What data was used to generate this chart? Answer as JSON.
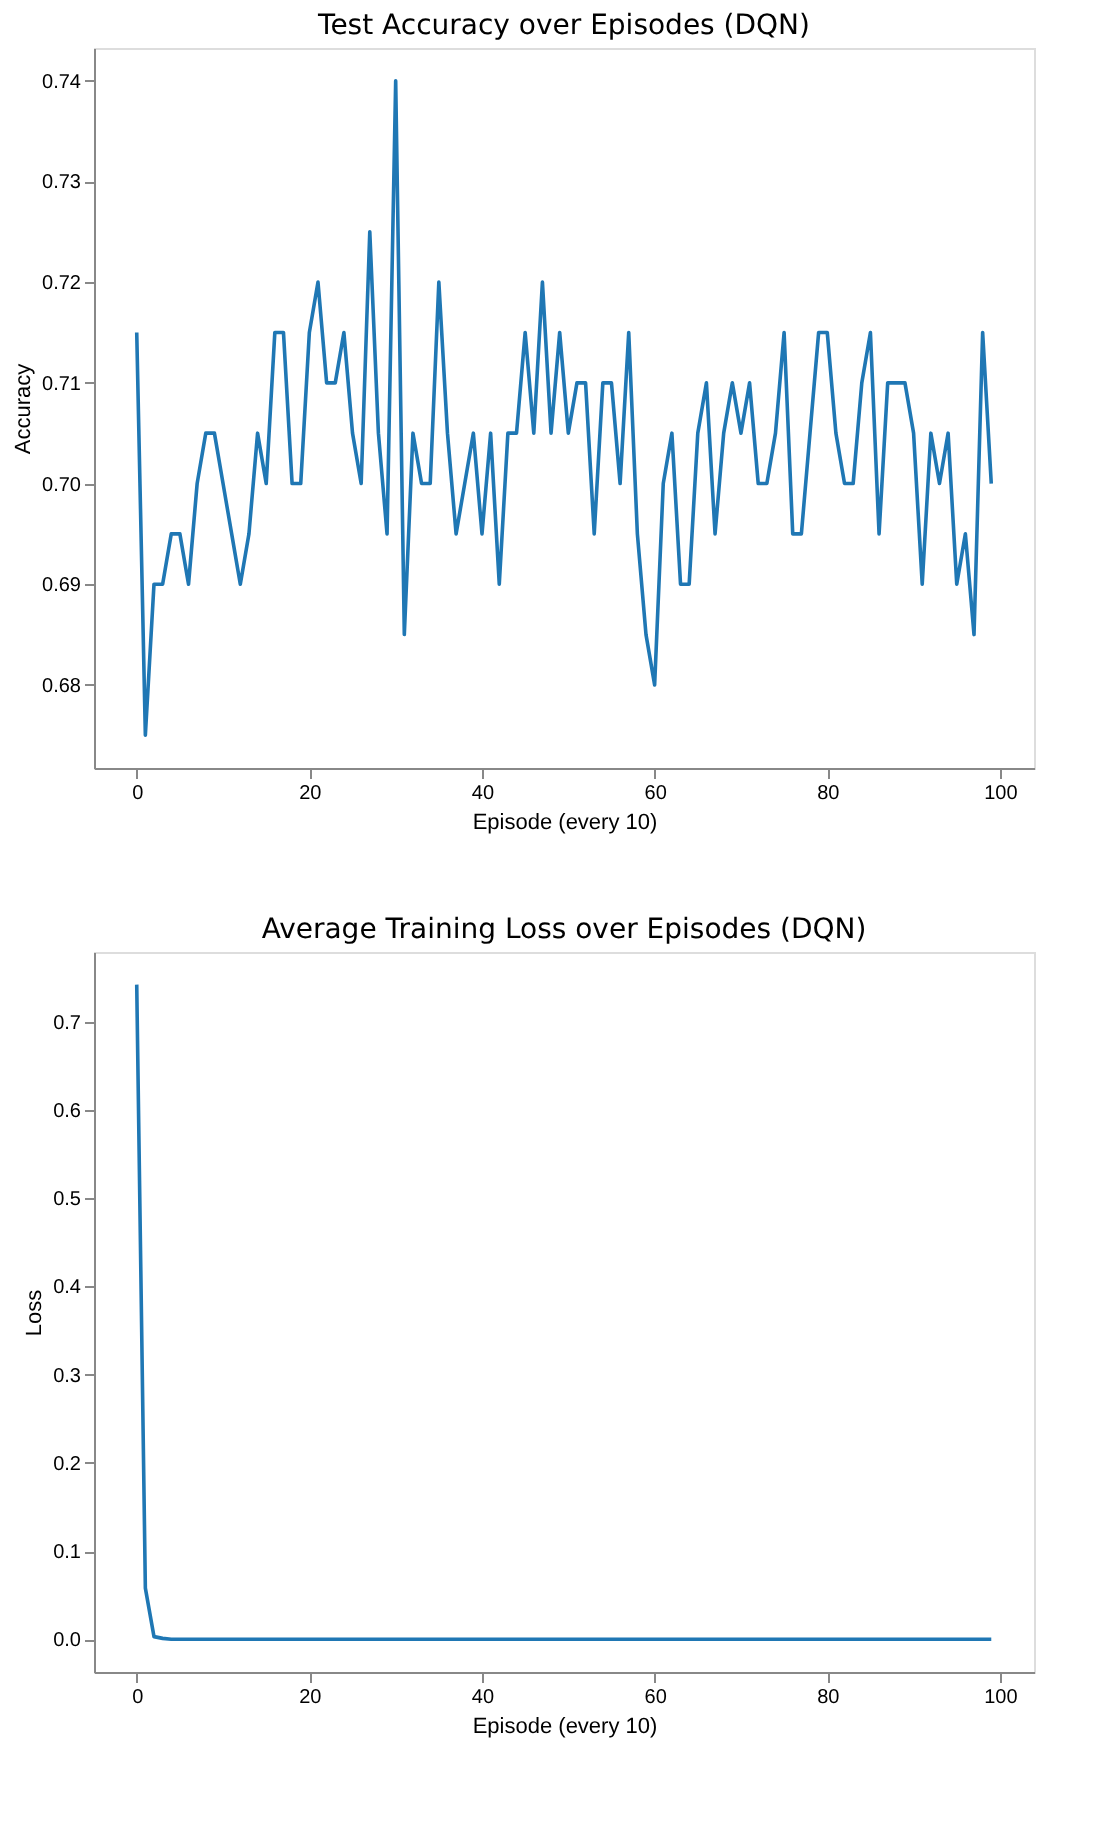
{
  "chart_data": [
    {
      "type": "line",
      "title": "Test Accuracy over Episodes (DQN)",
      "xlabel": "Episode (every 10)",
      "ylabel": "Accuracy",
      "grid": false,
      "line_style": "solid",
      "marker": "none",
      "x": [
        0,
        1,
        2,
        3,
        4,
        5,
        6,
        7,
        8,
        9,
        10,
        11,
        12,
        13,
        14,
        15,
        16,
        17,
        18,
        19,
        20,
        21,
        22,
        23,
        24,
        25,
        26,
        27,
        28,
        29,
        30,
        31,
        32,
        33,
        34,
        35,
        36,
        37,
        38,
        39,
        40,
        41,
        42,
        43,
        44,
        45,
        46,
        47,
        48,
        49,
        50,
        51,
        52,
        53,
        54,
        55,
        56,
        57,
        58,
        59,
        60,
        61,
        62,
        63,
        64,
        65,
        66,
        67,
        68,
        69,
        70,
        71,
        72,
        73,
        74,
        75,
        76,
        77,
        78,
        79,
        80,
        81,
        82,
        83,
        84,
        85,
        86,
        87,
        88,
        89,
        90,
        91,
        92,
        93,
        94,
        95,
        96,
        97,
        98,
        99
      ],
      "series": [
        {
          "color": "#1f77b4",
          "values": [
            0.715,
            0.675,
            0.69,
            0.69,
            0.695,
            0.695,
            0.69,
            0.7,
            0.705,
            0.705,
            0.7,
            0.695,
            0.69,
            0.695,
            0.705,
            0.7,
            0.715,
            0.715,
            0.7,
            0.7,
            0.715,
            0.72,
            0.71,
            0.71,
            0.715,
            0.705,
            0.7,
            0.725,
            0.705,
            0.695,
            0.74,
            0.685,
            0.705,
            0.7,
            0.7,
            0.72,
            0.705,
            0.695,
            0.7,
            0.705,
            0.695,
            0.705,
            0.69,
            0.705,
            0.705,
            0.715,
            0.705,
            0.72,
            0.705,
            0.715,
            0.705,
            0.71,
            0.71,
            0.695,
            0.71,
            0.71,
            0.7,
            0.715,
            0.695,
            0.685,
            0.68,
            0.7,
            0.705,
            0.69,
            0.69,
            0.705,
            0.71,
            0.695,
            0.705,
            0.71,
            0.705,
            0.71,
            0.7,
            0.7,
            0.705,
            0.715,
            0.695,
            0.695,
            0.705,
            0.715,
            0.715,
            0.705,
            0.7,
            0.7,
            0.71,
            0.715,
            0.695,
            0.71,
            0.71,
            0.71,
            0.705,
            0.69,
            0.705,
            0.7,
            0.705,
            0.69,
            0.695,
            0.685,
            0.715,
            0.7
          ]
        }
      ],
      "xlim": [
        -4.95,
        103.95
      ],
      "xticks": [
        0,
        20,
        40,
        60,
        80,
        100
      ],
      "ylim": [
        0.67175,
        0.74325
      ],
      "yticks": [
        0.68,
        0.69,
        {
          "value": 0.7,
          "label": "0.70"
        },
        0.71,
        0.72,
        0.73,
        0.74
      ]
    },
    {
      "type": "line",
      "title": "Average Training Loss over Episodes (DQN)",
      "xlabel": "Episode (every 10)",
      "ylabel": "Loss",
      "grid": false,
      "line_style": "solid",
      "marker": "none",
      "x": [
        0,
        1,
        2,
        3,
        4,
        5,
        6,
        7,
        8,
        9,
        10,
        11,
        12,
        13,
        14,
        15,
        16,
        17,
        18,
        19,
        20,
        21,
        22,
        23,
        24,
        25,
        26,
        27,
        28,
        29,
        30,
        31,
        32,
        33,
        34,
        35,
        36,
        37,
        38,
        39,
        40,
        41,
        42,
        43,
        44,
        45,
        46,
        47,
        48,
        49,
        50,
        51,
        52,
        53,
        54,
        55,
        56,
        57,
        58,
        59,
        60,
        61,
        62,
        63,
        64,
        65,
        66,
        67,
        68,
        69,
        70,
        71,
        72,
        73,
        74,
        75,
        76,
        77,
        78,
        79,
        80,
        81,
        82,
        83,
        84,
        85,
        86,
        87,
        88,
        89,
        90,
        91,
        92,
        93,
        94,
        95,
        96,
        97,
        98,
        99
      ],
      "series": [
        {
          "color": "#1f77b4",
          "values": [
            0.742,
            0.058,
            0.003,
            0.001,
            0,
            0,
            0,
            0,
            0,
            0,
            0,
            0,
            0,
            0,
            0,
            0,
            0,
            0,
            0,
            0,
            0,
            0,
            0,
            0,
            0,
            0,
            0,
            0,
            0,
            0,
            0,
            0,
            0,
            0,
            0,
            0,
            0,
            0,
            0,
            0,
            0,
            0,
            0,
            0,
            0,
            0,
            0,
            0,
            0,
            0,
            0,
            0,
            0,
            0,
            0,
            0,
            0,
            0,
            0,
            0,
            0,
            0,
            0,
            0,
            0,
            0,
            0,
            0,
            0,
            0,
            0,
            0,
            0,
            0,
            0,
            0,
            0,
            0,
            0,
            0,
            0,
            0,
            0,
            0,
            0,
            0,
            0,
            0,
            0,
            0,
            0,
            0,
            0,
            0,
            0,
            0,
            0,
            0,
            0,
            0
          ]
        }
      ],
      "xlim": [
        -4.95,
        103.95
      ],
      "xticks": [
        0,
        20,
        40,
        60,
        80,
        100
      ],
      "ylim": [
        -0.0371,
        0.779
      ],
      "yticks": [
        {
          "value": 0,
          "label": "0.0"
        },
        0.1,
        0.2,
        0.3,
        0.4,
        0.5,
        0.6,
        0.7
      ]
    }
  ]
}
